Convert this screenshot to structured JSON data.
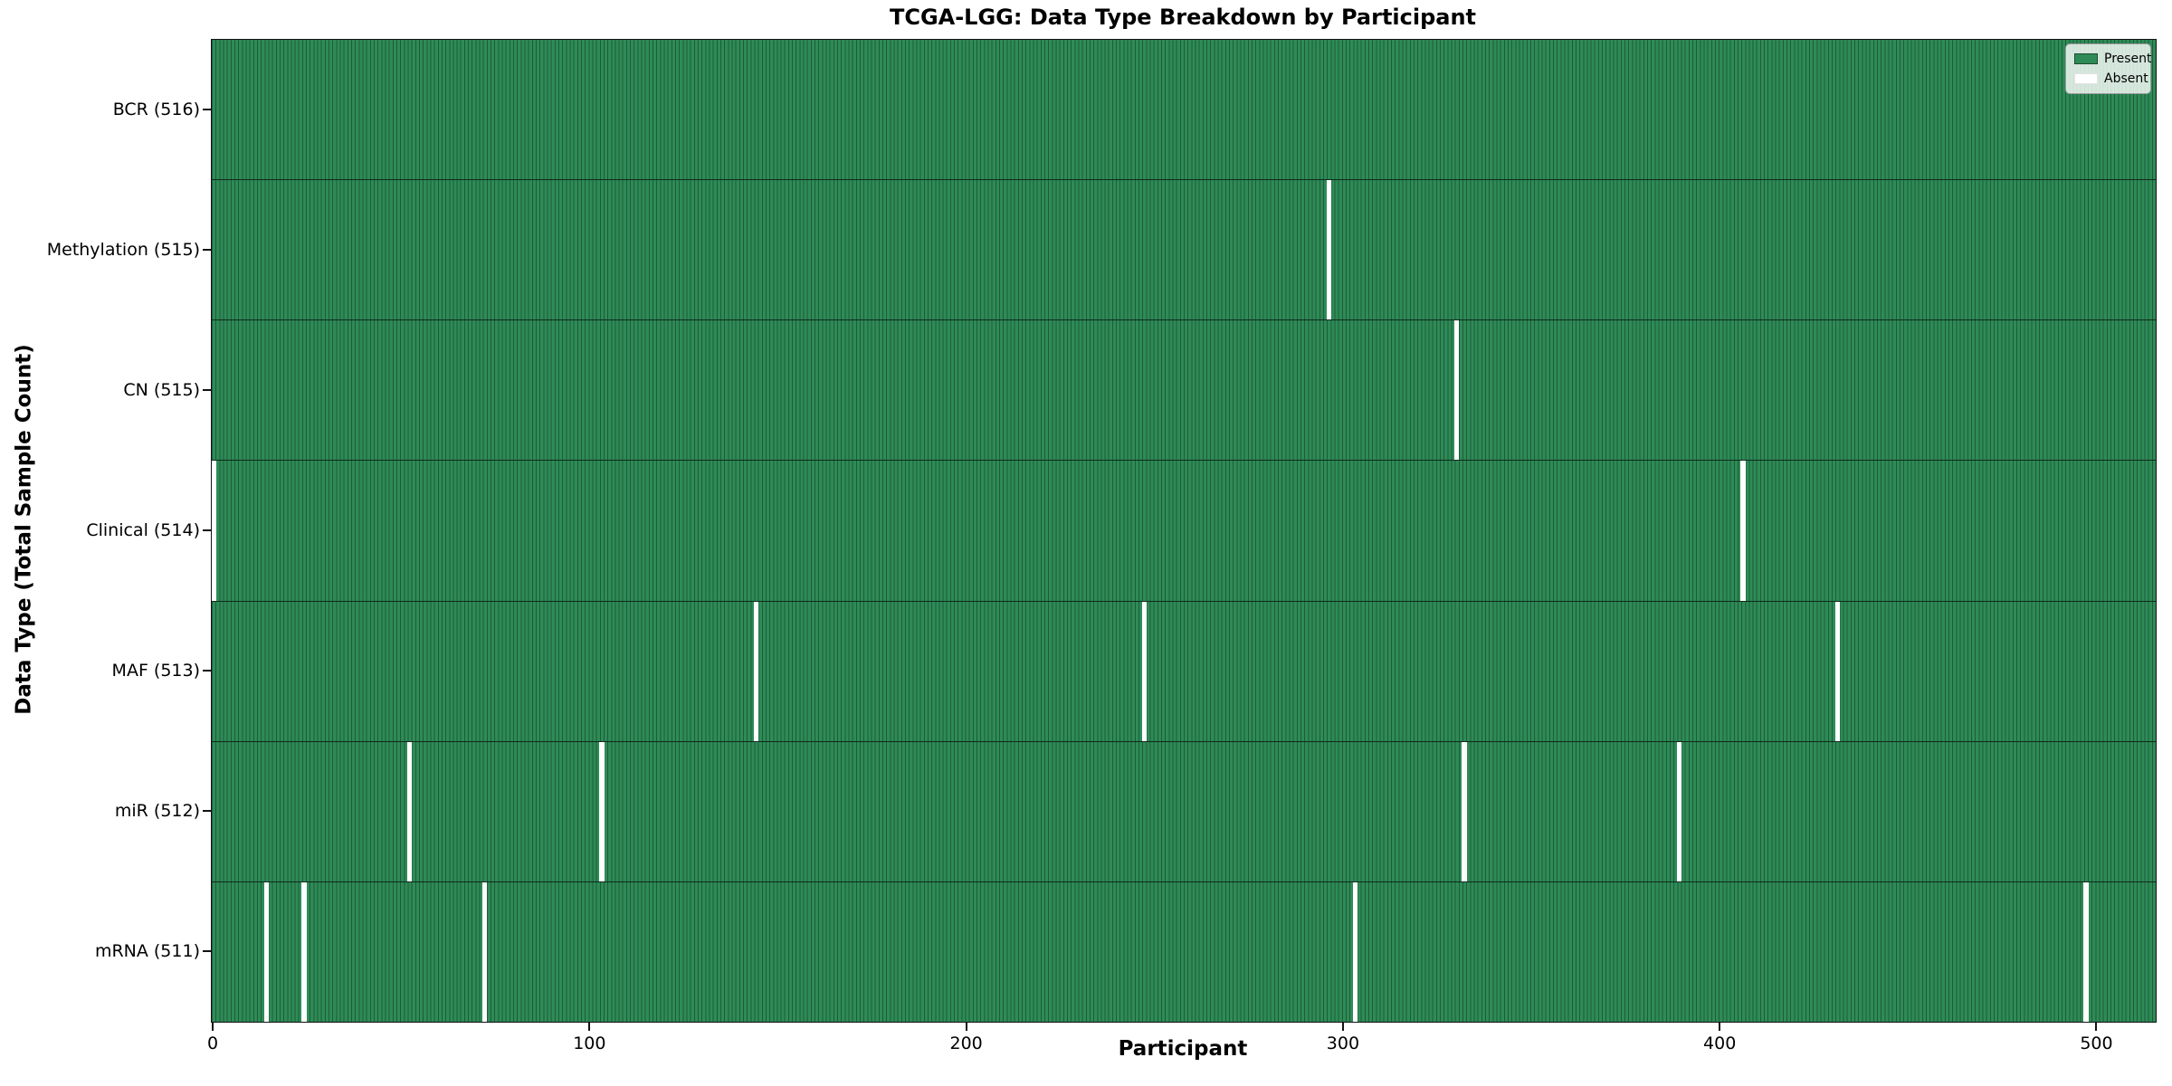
{
  "title": "TCGA-LGG: Data Type Breakdown by Participant",
  "chart_data": {
    "type": "heatmap",
    "title": "TCGA-LGG: Data Type Breakdown by Participant",
    "xlabel": "Participant",
    "ylabel": "Data Type (Total Sample Count)",
    "x_ticks": [
      0,
      100,
      200,
      300,
      400,
      500
    ],
    "xlim": [
      0,
      516
    ],
    "n_participants": 516,
    "grid": false,
    "legend_position": "upper right",
    "legend": {
      "entries": [
        {
          "label": "Present",
          "color": "#2e8b57"
        },
        {
          "label": "Absent",
          "color": "#ffffff"
        }
      ]
    },
    "rows": [
      {
        "label": "BCR (516)",
        "name": "BCR",
        "total": 516,
        "absent_participants": []
      },
      {
        "label": "Methylation (515)",
        "name": "Methylation",
        "total": 515,
        "absent_participants": [
          296
        ]
      },
      {
        "label": "CN (515)",
        "name": "CN",
        "total": 515,
        "absent_participants": [
          330
        ]
      },
      {
        "label": "Clinical (514)",
        "name": "Clinical",
        "total": 514,
        "absent_participants": [
          0,
          406
        ]
      },
      {
        "label": "MAF (513)",
        "name": "MAF",
        "total": 513,
        "absent_participants": [
          144,
          247,
          431
        ]
      },
      {
        "label": "miR (512)",
        "name": "miR",
        "total": 512,
        "absent_participants": [
          52,
          103,
          332,
          389
        ]
      },
      {
        "label": "mRNA (511)",
        "name": "mRNA",
        "total": 511,
        "absent_participants": [
          14,
          24,
          72,
          303,
          497
        ]
      }
    ],
    "colors": {
      "present": "#2e8b57",
      "absent": "#ffffff",
      "bar_edge": "#1e5c39",
      "row_separator": "#0e2b1b",
      "axis": "#121212"
    }
  }
}
